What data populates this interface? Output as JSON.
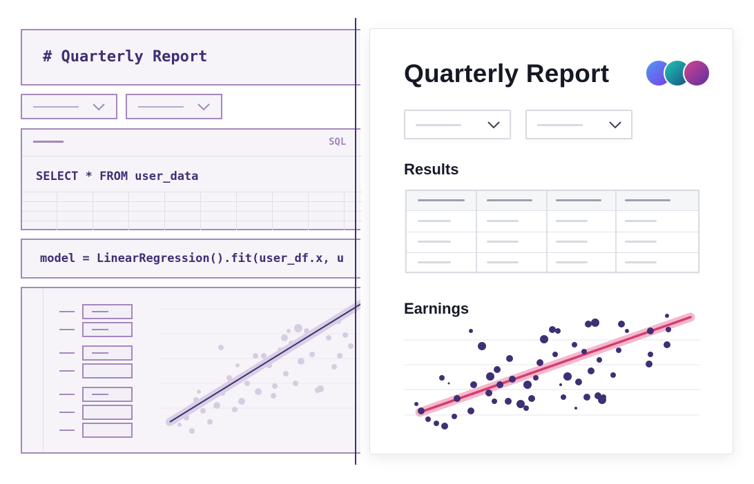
{
  "notebook": {
    "markdown_cell": "# Quarterly Report",
    "sql_cell": {
      "lang_label": "SQL",
      "query": "SELECT * FROM user_data"
    },
    "code_cell": "model = LinearRegression().fit(user_df.x, u"
  },
  "app": {
    "title": "Quarterly Report",
    "results_heading": "Results",
    "earnings_heading": "Earnings",
    "colors": {
      "accent": "#d63c6f",
      "dot": "#3f2f74",
      "notebook_purple": "#a587bd"
    },
    "avatars": [
      "avatar-blue-purple",
      "avatar-teal",
      "avatar-magenta"
    ]
  }
}
